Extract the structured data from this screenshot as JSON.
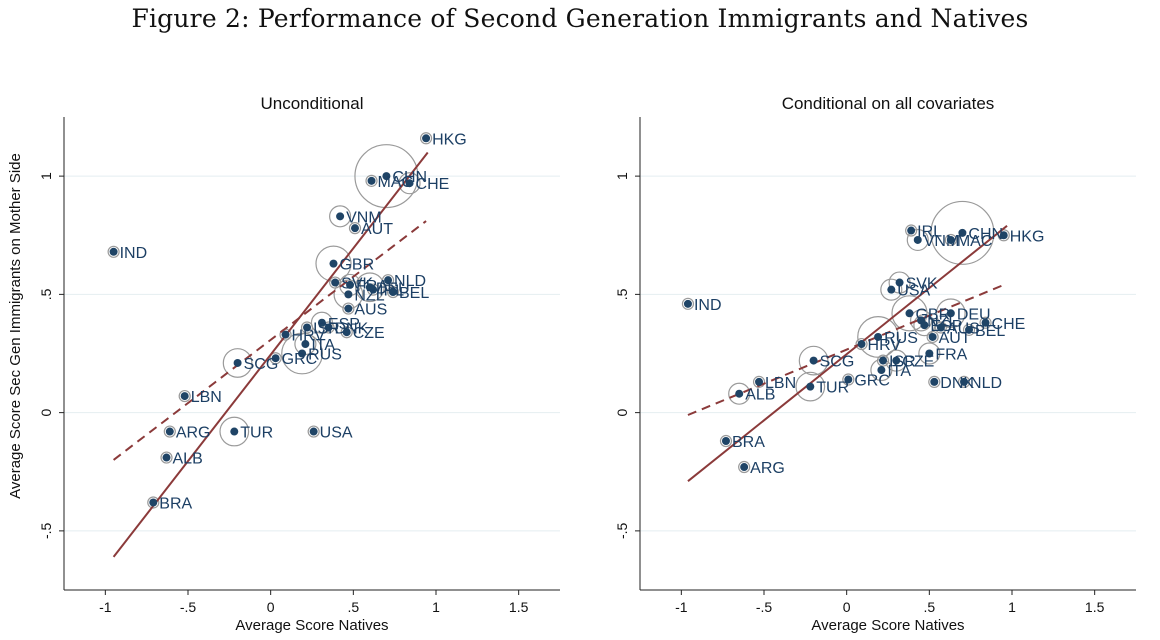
{
  "figure_title": "Figure 2: Performance of Second Generation Immigrants and Natives",
  "y_axis_label": "Average Score Sec Gen Immigrants on Mother Side",
  "colors": {
    "marker": "#1f4466",
    "fit_line": "#8b3a3a",
    "bubble": "#9a9a9a",
    "grid": "#e4eef1",
    "label": "#1c3f64"
  },
  "chart_data": [
    {
      "type": "scatter",
      "title": "Unconditional",
      "xlabel": "Average Score Natives",
      "ylabel": "Average Score Sec Gen Immigrants on Mother Side",
      "xlim": [
        -1.25,
        1.75
      ],
      "ylim": [
        -0.75,
        1.25
      ],
      "xticks": [
        -1,
        -0.5,
        0,
        0.5,
        1,
        1.5
      ],
      "xtick_labels": [
        "-1",
        "-.5",
        "0",
        ".5",
        "1",
        "1.5"
      ],
      "yticks": [
        -0.5,
        0,
        0.5,
        1
      ],
      "ytick_labels": [
        "-.5",
        "0",
        ".5",
        "1"
      ],
      "grid": true,
      "points": [
        {
          "label": "HKG",
          "x": 0.94,
          "y": 1.16,
          "weight": 1
        },
        {
          "label": "CHN",
          "x": 0.7,
          "y": 1.0,
          "weight": 10
        },
        {
          "label": "MAC",
          "x": 0.61,
          "y": 0.98,
          "weight": 1
        },
        {
          "label": "CHE",
          "x": 0.84,
          "y": 0.97,
          "weight": 2
        },
        {
          "label": "VNM",
          "x": 0.42,
          "y": 0.83,
          "weight": 2
        },
        {
          "label": "AUT",
          "x": 0.51,
          "y": 0.78,
          "weight": 1
        },
        {
          "label": "IND",
          "x": -0.95,
          "y": 0.68,
          "weight": 1
        },
        {
          "label": "GBR",
          "x": 0.38,
          "y": 0.63,
          "weight": 4
        },
        {
          "label": "NLD",
          "x": 0.71,
          "y": 0.56,
          "weight": 1
        },
        {
          "label": "SVK",
          "x": 0.39,
          "y": 0.55,
          "weight": 1
        },
        {
          "label": "FRA",
          "x": 0.48,
          "y": 0.54,
          "weight": 2
        },
        {
          "label": "DEU",
          "x": 0.6,
          "y": 0.53,
          "weight": 3
        },
        {
          "label": "IRL",
          "x": 0.62,
          "y": 0.52,
          "weight": 1
        },
        {
          "label": "BEL",
          "x": 0.74,
          "y": 0.51,
          "weight": 1
        },
        {
          "label": "NZL",
          "x": 0.47,
          "y": 0.5,
          "weight": 3
        },
        {
          "label": "AUS",
          "x": 0.47,
          "y": 0.44,
          "weight": 1
        },
        {
          "label": "ESP",
          "x": 0.31,
          "y": 0.38,
          "weight": 2
        },
        {
          "label": "DNK",
          "x": 0.35,
          "y": 0.36,
          "weight": 1
        },
        {
          "label": "ISR",
          "x": 0.22,
          "y": 0.36,
          "weight": 1
        },
        {
          "label": "CZE",
          "x": 0.46,
          "y": 0.34,
          "weight": 1
        },
        {
          "label": "HRV",
          "x": 0.09,
          "y": 0.33,
          "weight": 1
        },
        {
          "label": "ITA",
          "x": 0.21,
          "y": 0.29,
          "weight": 2
        },
        {
          "label": "RUS",
          "x": 0.19,
          "y": 0.25,
          "weight": 5
        },
        {
          "label": "GRC",
          "x": 0.03,
          "y": 0.23,
          "weight": 1
        },
        {
          "label": "SCG",
          "x": -0.2,
          "y": 0.21,
          "weight": 3
        },
        {
          "label": "LBN",
          "x": -0.52,
          "y": 0.07,
          "weight": 1
        },
        {
          "label": "TUR",
          "x": -0.22,
          "y": -0.08,
          "weight": 3
        },
        {
          "label": "USA",
          "x": 0.26,
          "y": -0.08,
          "weight": 1
        },
        {
          "label": "ARG",
          "x": -0.61,
          "y": -0.08,
          "weight": 1
        },
        {
          "label": "ALB",
          "x": -0.63,
          "y": -0.19,
          "weight": 1
        },
        {
          "label": "BRA",
          "x": -0.71,
          "y": -0.38,
          "weight": 1
        }
      ],
      "fit_solid": {
        "x": [
          -0.95,
          0.95
        ],
        "y": [
          -0.61,
          1.1
        ]
      },
      "fit_dashed": {
        "x": [
          -0.95,
          0.94
        ],
        "y": [
          -0.2,
          0.81
        ]
      }
    },
    {
      "type": "scatter",
      "title": "Conditional on all covariates",
      "xlabel": "Average Score Natives",
      "ylabel": "",
      "xlim": [
        -1.25,
        1.75
      ],
      "ylim": [
        -0.75,
        1.25
      ],
      "xticks": [
        -1,
        -0.5,
        0,
        0.5,
        1,
        1.5
      ],
      "xtick_labels": [
        "-1",
        "-.5",
        "0",
        ".5",
        "1",
        "1.5"
      ],
      "yticks": [
        -0.5,
        0,
        0.5,
        1
      ],
      "ytick_labels": [
        "-.5",
        "0",
        ".5",
        "1"
      ],
      "grid": true,
      "points": [
        {
          "label": "IRL",
          "x": 0.39,
          "y": 0.77,
          "weight": 1
        },
        {
          "label": "CHN",
          "x": 0.7,
          "y": 0.76,
          "weight": 10
        },
        {
          "label": "HKG",
          "x": 0.95,
          "y": 0.75,
          "weight": 1
        },
        {
          "label": "VNM",
          "x": 0.43,
          "y": 0.73,
          "weight": 2
        },
        {
          "label": "MAC",
          "x": 0.63,
          "y": 0.73,
          "weight": 1
        },
        {
          "label": "SVK",
          "x": 0.32,
          "y": 0.55,
          "weight": 2
        },
        {
          "label": "USA",
          "x": 0.27,
          "y": 0.52,
          "weight": 2
        },
        {
          "label": "IND",
          "x": -0.96,
          "y": 0.46,
          "weight": 1
        },
        {
          "label": "GBR",
          "x": 0.38,
          "y": 0.42,
          "weight": 4
        },
        {
          "label": "DEU",
          "x": 0.63,
          "y": 0.42,
          "weight": 3
        },
        {
          "label": "NZL",
          "x": 0.45,
          "y": 0.39,
          "weight": 2
        },
        {
          "label": "CHE",
          "x": 0.84,
          "y": 0.38,
          "weight": 1
        },
        {
          "label": "ESP",
          "x": 0.47,
          "y": 0.37,
          "weight": 2
        },
        {
          "label": "AUS",
          "x": 0.57,
          "y": 0.36,
          "weight": 1
        },
        {
          "label": "BEL",
          "x": 0.74,
          "y": 0.35,
          "weight": 1
        },
        {
          "label": "AUT",
          "x": 0.52,
          "y": 0.32,
          "weight": 1
        },
        {
          "label": "RUS",
          "x": 0.19,
          "y": 0.32,
          "weight": 5
        },
        {
          "label": "HRV",
          "x": 0.09,
          "y": 0.29,
          "weight": 1
        },
        {
          "label": "FRA",
          "x": 0.5,
          "y": 0.25,
          "weight": 2
        },
        {
          "label": "SCG",
          "x": -0.2,
          "y": 0.22,
          "weight": 3
        },
        {
          "label": "ISR",
          "x": 0.22,
          "y": 0.22,
          "weight": 1
        },
        {
          "label": "CZE",
          "x": 0.3,
          "y": 0.22,
          "weight": 2
        },
        {
          "label": "ITA",
          "x": 0.21,
          "y": 0.18,
          "weight": 2
        },
        {
          "label": "GRC",
          "x": 0.01,
          "y": 0.14,
          "weight": 1
        },
        {
          "label": "LBN",
          "x": -0.53,
          "y": 0.13,
          "weight": 1
        },
        {
          "label": "DNK",
          "x": 0.53,
          "y": 0.13,
          "weight": 1
        },
        {
          "label": "NLD",
          "x": 0.71,
          "y": 0.13,
          "weight": 1
        },
        {
          "label": "TUR",
          "x": -0.22,
          "y": 0.11,
          "weight": 3
        },
        {
          "label": "ALB",
          "x": -0.65,
          "y": 0.08,
          "weight": 2
        },
        {
          "label": "BRA",
          "x": -0.73,
          "y": -0.12,
          "weight": 1
        },
        {
          "label": "ARG",
          "x": -0.62,
          "y": -0.23,
          "weight": 1
        }
      ],
      "fit_solid": {
        "x": [
          -0.96,
          0.97
        ],
        "y": [
          -0.29,
          0.79
        ]
      },
      "fit_dashed": {
        "x": [
          -0.96,
          0.95
        ],
        "y": [
          -0.01,
          0.54
        ]
      }
    }
  ]
}
